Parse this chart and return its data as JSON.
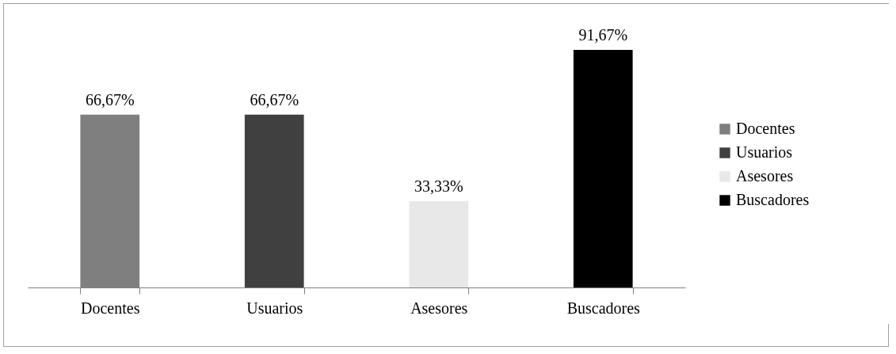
{
  "chart_data": {
    "type": "bar",
    "categories": [
      "Docentes",
      "Usuarios",
      "Asesores",
      "Buscadores"
    ],
    "series": [
      {
        "name": "Docentes",
        "color": "#7f7f7f",
        "values": [
          66.67,
          null,
          null,
          null
        ],
        "value_labels": [
          "66,67%",
          null,
          null,
          null
        ]
      },
      {
        "name": "Usuarios",
        "color": "#404040",
        "values": [
          null,
          66.67,
          null,
          null
        ],
        "value_labels": [
          null,
          "66,67%",
          null,
          null
        ]
      },
      {
        "name": "Asesores",
        "color": "#e8e8e8",
        "values": [
          null,
          null,
          33.33,
          null
        ],
        "value_labels": [
          null,
          null,
          "33,33%",
          null
        ]
      },
      {
        "name": "Buscadores",
        "color": "#000000",
        "values": [
          null,
          null,
          null,
          91.67
        ],
        "value_labels": [
          null,
          null,
          null,
          "91,67%"
        ]
      }
    ],
    "legend": "right"
  }
}
